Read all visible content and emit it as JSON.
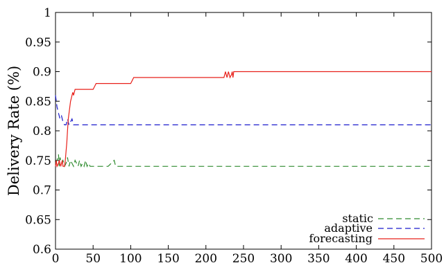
{
  "chart_data": {
    "type": "line",
    "title": "",
    "xlabel": "",
    "ylabel": "Delivery Rate (%)",
    "xlim": [
      0,
      500
    ],
    "ylim": [
      0.6,
      1.0
    ],
    "xticks": [
      0,
      50,
      100,
      150,
      200,
      250,
      300,
      350,
      400,
      450,
      500
    ],
    "yticks": [
      0.6,
      0.65,
      0.7,
      0.75,
      0.8,
      0.85,
      0.9,
      0.95,
      1.0
    ],
    "xtick_labels": [
      "0",
      "50",
      "100",
      "150",
      "200",
      "250",
      "300",
      "350",
      "400",
      "450",
      "500"
    ],
    "ytick_labels": [
      "0.6",
      "0.65",
      "0.7",
      "0.75",
      "0.8",
      "0.85",
      "0.9",
      "0.95",
      "1"
    ],
    "grid": false,
    "legend": "bottom-right",
    "series": [
      {
        "name": "static",
        "color": "#2e8b2e",
        "style": "dashed",
        "x": [
          0,
          2,
          4,
          5,
          6,
          8,
          10,
          12,
          14,
          16,
          18,
          20,
          22,
          24,
          26,
          28,
          30,
          32,
          34,
          36,
          38,
          40,
          42,
          44,
          46,
          48,
          50,
          60,
          70,
          78,
          80,
          90,
          100,
          500
        ],
        "y": [
          0.745,
          0.75,
          0.76,
          0.74,
          0.755,
          0.745,
          0.75,
          0.74,
          0.745,
          0.755,
          0.74,
          0.75,
          0.745,
          0.74,
          0.75,
          0.745,
          0.74,
          0.75,
          0.74,
          0.745,
          0.74,
          0.75,
          0.74,
          0.745,
          0.74,
          0.74,
          0.74,
          0.74,
          0.74,
          0.75,
          0.74,
          0.74,
          0.74,
          0.74
        ]
      },
      {
        "name": "adaptive",
        "color": "#1a1acc",
        "style": "dashed",
        "x": [
          0,
          1,
          2,
          3,
          4,
          5,
          6,
          8,
          10,
          12,
          14,
          16,
          18,
          20,
          22,
          24,
          26,
          500
        ],
        "y": [
          0.86,
          0.85,
          0.84,
          0.835,
          0.83,
          0.825,
          0.82,
          0.825,
          0.815,
          0.81,
          0.81,
          0.82,
          0.81,
          0.815,
          0.82,
          0.81,
          0.81,
          0.81
        ]
      },
      {
        "name": "forecasting",
        "color": "#e8201a",
        "style": "solid",
        "x": [
          0,
          1,
          2,
          4,
          5,
          7,
          8,
          9,
          10,
          12,
          13,
          15,
          16,
          17,
          18,
          19,
          20,
          21,
          22,
          23,
          24,
          25,
          26,
          28,
          30,
          50,
          52,
          54,
          100,
          102,
          104,
          224,
          225,
          226,
          227,
          228,
          230,
          232,
          234,
          235,
          236,
          237,
          238,
          500
        ],
        "y": [
          0.74,
          0.75,
          0.74,
          0.745,
          0.75,
          0.74,
          0.745,
          0.75,
          0.74,
          0.74,
          0.75,
          0.78,
          0.8,
          0.82,
          0.83,
          0.84,
          0.85,
          0.855,
          0.86,
          0.865,
          0.86,
          0.865,
          0.87,
          0.87,
          0.87,
          0.87,
          0.875,
          0.88,
          0.88,
          0.885,
          0.89,
          0.89,
          0.895,
          0.9,
          0.895,
          0.89,
          0.9,
          0.89,
          0.895,
          0.9,
          0.89,
          0.9,
          0.9,
          0.9
        ]
      }
    ]
  }
}
